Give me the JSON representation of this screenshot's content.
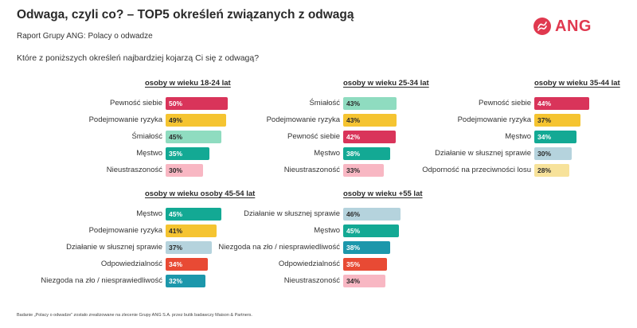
{
  "header": {
    "title": "Odwaga, czyli co? – TOP5 określeń związanych z odwagą",
    "subtitle": "Raport Grupy ANG: Polacy o odwadze",
    "question": "Które z poniższych określeń najbardziej kojarzą Ci się z odwagą?"
  },
  "logo": {
    "text": "ANG",
    "color": "#e0394f",
    "icon": "ang-logo-icon"
  },
  "footnote": "Badanie „Polacy o odwadze” zostało zrealizowane na zlecenie Grupy ANG S.A. przez butik badawczy Maison & Partners.",
  "chart_data": [
    {
      "type": "bar",
      "orientation": "horizontal",
      "title": "osoby w wieku 18-24 lat",
      "unit": "%",
      "categories": [
        "Pewność siebie",
        "Podejmowanie ryzyka",
        "Śmiałość",
        "Męstwo",
        "Nieustraszoność"
      ],
      "values": [
        50,
        49,
        45,
        35,
        30
      ],
      "value_labels": [
        "50%",
        "49%",
        "45%",
        "35%",
        "30%"
      ],
      "colors": [
        "#d9345a",
        "#f5c431",
        "#8fdcc0",
        "#13a994",
        "#f8b7c3"
      ]
    },
    {
      "type": "bar",
      "orientation": "horizontal",
      "title": "osoby w wieku 25-34 lat",
      "unit": "%",
      "categories": [
        "Śmiałość",
        "Podejmowanie ryzyka",
        "Pewność siebie",
        "Męstwo",
        "Nieustraszoność"
      ],
      "values": [
        43,
        43,
        42,
        38,
        33
      ],
      "value_labels": [
        "43%",
        "43%",
        "42%",
        "38%",
        "33%"
      ],
      "colors": [
        "#8fdcc0",
        "#f5c431",
        "#d9345a",
        "#13a994",
        "#f8b7c3"
      ]
    },
    {
      "type": "bar",
      "orientation": "horizontal",
      "title": "osoby w wieku 35-44 lat",
      "unit": "%",
      "categories": [
        "Pewność siebie",
        "Podejmowanie ryzyka",
        "Męstwo",
        "Działanie w słusznej sprawie",
        "Odporność na przeciwności losu"
      ],
      "values": [
        44,
        37,
        34,
        30,
        28
      ],
      "value_labels": [
        "44%",
        "37%",
        "34%",
        "30%",
        "28%"
      ],
      "colors": [
        "#d9345a",
        "#f5c431",
        "#13a994",
        "#b5d3dd",
        "#f7e29a"
      ]
    },
    {
      "type": "bar",
      "orientation": "horizontal",
      "title": "osoby w wieku osoby 45-54 lat",
      "unit": "%",
      "categories": [
        "Męstwo",
        "Podejmowanie ryzyka",
        "Działanie w słusznej sprawie",
        "Odpowiedzialność",
        "Niezgoda na zło / niesprawiedliwość"
      ],
      "values": [
        45,
        41,
        37,
        34,
        32
      ],
      "value_labels": [
        "45%",
        "41%",
        "37%",
        "34%",
        "32%"
      ],
      "colors": [
        "#13a994",
        "#f5c431",
        "#b5d3dd",
        "#e84a34",
        "#1c97ab"
      ]
    },
    {
      "type": "bar",
      "orientation": "horizontal",
      "title": "osoby w wieku +55 lat",
      "unit": "%",
      "categories": [
        "Działanie w słusznej sprawie",
        "Męstwo",
        "Niezgoda na zło / niesprawiedliwość",
        "Odpowiedzialność",
        "Nieustraszoność"
      ],
      "values": [
        46,
        45,
        38,
        35,
        34
      ],
      "value_labels": [
        "46%",
        "45%",
        "38%",
        "35%",
        "34%"
      ],
      "colors": [
        "#b5d3dd",
        "#13a994",
        "#1c97ab",
        "#e84a34",
        "#f8b7c3"
      ]
    }
  ]
}
